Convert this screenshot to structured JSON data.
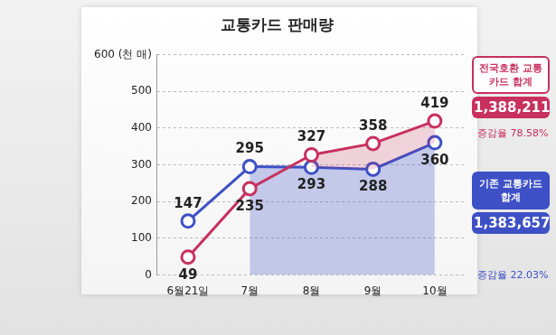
{
  "chart_data": {
    "type": "line",
    "title": "교통카드 판매량",
    "categories": [
      "6월21일",
      "7월",
      "8월",
      "9월",
      "10월"
    ],
    "series": [
      {
        "name": "전국호환 교통카드",
        "color": "#c8305e",
        "values": [
          49,
          235,
          327,
          358,
          419
        ]
      },
      {
        "name": "기존 교통카드",
        "color": "#3d50c6",
        "values": [
          147,
          295,
          293,
          288,
          360
        ]
      }
    ],
    "ylim": [
      0,
      600
    ],
    "yticks": [
      0,
      100,
      200,
      300,
      400,
      {
        "value": 600,
        "label": "600 (천 매)"
      },
      500
    ],
    "grid": true,
    "data_labels": true,
    "legend": "none",
    "marker": "circle",
    "annotations": [
      {
        "title": "전국호환 교통카드 합계",
        "value": "1,388,211",
        "rate": "증감율 78.58%",
        "color": "#c8305e"
      },
      {
        "title": "기존 교통카드 합계",
        "value": "1,383,657",
        "rate": "증감율 22.03%",
        "color": "#3d50c6"
      }
    ]
  }
}
